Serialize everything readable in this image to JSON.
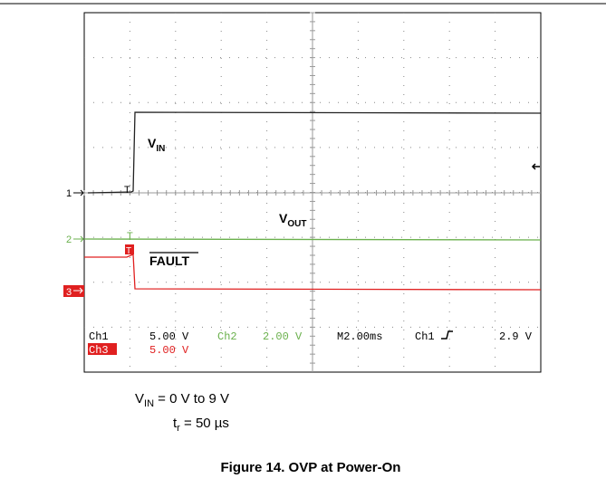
{
  "scope": {
    "traces": {
      "vin": {
        "main": "V",
        "sub": "IN"
      },
      "vout": {
        "main": "V",
        "sub": "OUT"
      },
      "fault": "FAULT"
    },
    "markers": {
      "ch1": "1",
      "ch2": "2",
      "ch3": "3",
      "trigger": "T"
    },
    "readout": {
      "ch1": "Ch1",
      "ch1_scale": "5.00 V",
      "ch2": "Ch2",
      "ch2_scale": "2.00 V",
      "time": "M2.00ms",
      "trig_src": "Ch1",
      "trig_level": "2.9 V",
      "ch3": "Ch3",
      "ch3_scale": "5.00 V"
    }
  },
  "conditions": {
    "vin": {
      "main": "V",
      "sub": "IN",
      "rest": " = 0 V to 9 V"
    },
    "tr": {
      "main": "t",
      "sub": "r",
      "rest": " = 50 µs"
    }
  },
  "caption": "Figure 14. OVP at Power-On"
}
